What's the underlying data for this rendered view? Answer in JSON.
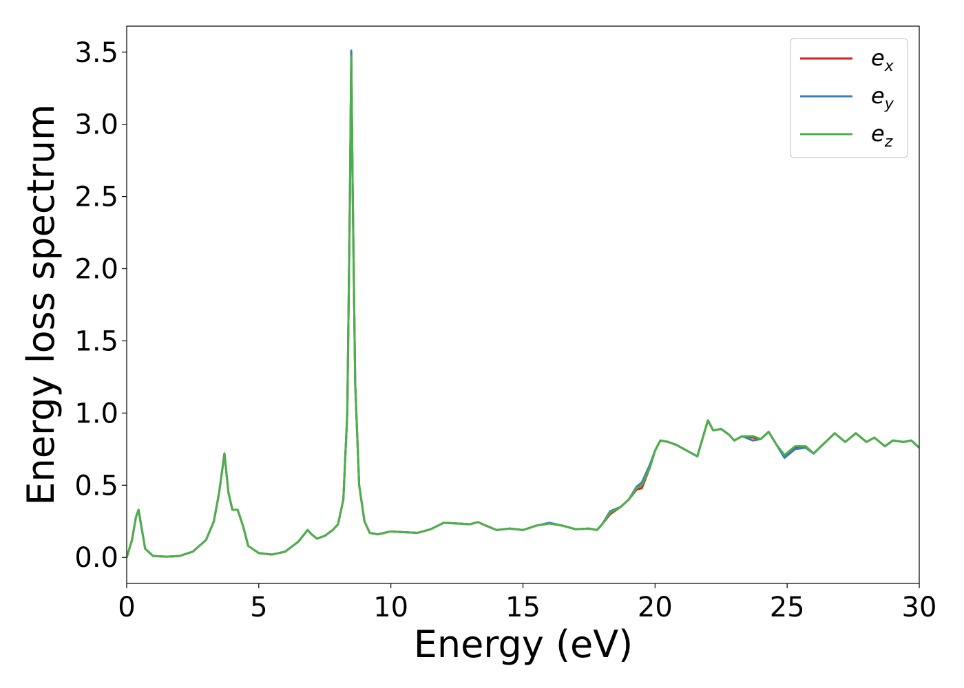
{
  "chart_data": {
    "type": "line",
    "xlabel": "Energy (eV)",
    "ylabel": "Energy loss spectrum",
    "x": [
      0,
      0.2,
      0.35,
      0.45,
      0.55,
      0.7,
      1.0,
      1.5,
      2.0,
      2.5,
      3.0,
      3.3,
      3.5,
      3.7,
      3.85,
      4.0,
      4.2,
      4.4,
      4.6,
      5.0,
      5.5,
      6.0,
      6.5,
      6.85,
      7.0,
      7.2,
      7.5,
      7.8,
      8.0,
      8.2,
      8.35,
      8.45,
      8.5,
      8.55,
      8.65,
      8.8,
      9.0,
      9.2,
      9.5,
      10.0,
      10.5,
      11.0,
      11.5,
      12.0,
      12.5,
      13.0,
      13.3,
      13.6,
      14.0,
      14.5,
      15.0,
      15.5,
      16.0,
      16.5,
      17.0,
      17.5,
      17.8,
      18.0,
      18.3,
      18.7,
      19.0,
      19.3,
      19.5,
      19.8,
      20.0,
      20.2,
      20.5,
      20.8,
      21.2,
      21.6,
      22.0,
      22.2,
      22.5,
      22.8,
      23.0,
      23.3,
      23.7,
      24.0,
      24.3,
      24.6,
      24.9,
      25.3,
      25.7,
      26.0,
      26.4,
      26.8,
      27.2,
      27.6,
      28.0,
      28.3,
      28.7,
      29.0,
      29.4,
      29.7,
      30.0
    ],
    "series": [
      {
        "name": "ex",
        "color": "#e41a1c",
        "values": [
          0,
          0.12,
          0.28,
          0.33,
          0.22,
          0.06,
          0.01,
          0.005,
          0.01,
          0.04,
          0.12,
          0.25,
          0.45,
          0.72,
          0.45,
          0.33,
          0.33,
          0.22,
          0.08,
          0.03,
          0.02,
          0.04,
          0.11,
          0.19,
          0.16,
          0.13,
          0.15,
          0.19,
          0.23,
          0.4,
          1.0,
          2.5,
          3.5,
          2.6,
          1.2,
          0.5,
          0.25,
          0.17,
          0.16,
          0.18,
          0.175,
          0.17,
          0.195,
          0.24,
          0.235,
          0.23,
          0.245,
          0.22,
          0.19,
          0.2,
          0.19,
          0.22,
          0.235,
          0.22,
          0.195,
          0.2,
          0.19,
          0.23,
          0.3,
          0.35,
          0.4,
          0.47,
          0.48,
          0.62,
          0.74,
          0.81,
          0.8,
          0.78,
          0.74,
          0.7,
          0.95,
          0.88,
          0.89,
          0.85,
          0.81,
          0.84,
          0.83,
          0.82,
          0.87,
          0.78,
          0.7,
          0.76,
          0.77,
          0.72,
          0.79,
          0.86,
          0.8,
          0.86,
          0.8,
          0.83,
          0.77,
          0.81,
          0.8,
          0.81,
          0.76
        ]
      },
      {
        "name": "ey",
        "color": "#377eb8",
        "values": [
          0,
          0.12,
          0.28,
          0.33,
          0.22,
          0.06,
          0.01,
          0.005,
          0.01,
          0.04,
          0.12,
          0.25,
          0.45,
          0.72,
          0.45,
          0.33,
          0.33,
          0.22,
          0.08,
          0.03,
          0.02,
          0.04,
          0.11,
          0.19,
          0.16,
          0.13,
          0.15,
          0.19,
          0.23,
          0.4,
          1.0,
          2.5,
          3.51,
          2.6,
          1.2,
          0.5,
          0.25,
          0.17,
          0.16,
          0.18,
          0.175,
          0.17,
          0.195,
          0.24,
          0.235,
          0.23,
          0.245,
          0.22,
          0.19,
          0.2,
          0.19,
          0.22,
          0.24,
          0.22,
          0.195,
          0.2,
          0.19,
          0.23,
          0.32,
          0.35,
          0.4,
          0.49,
          0.52,
          0.64,
          0.74,
          0.81,
          0.8,
          0.78,
          0.74,
          0.7,
          0.95,
          0.88,
          0.89,
          0.85,
          0.81,
          0.84,
          0.81,
          0.82,
          0.87,
          0.78,
          0.69,
          0.75,
          0.76,
          0.72,
          0.79,
          0.86,
          0.8,
          0.86,
          0.8,
          0.83,
          0.77,
          0.81,
          0.8,
          0.81,
          0.76
        ]
      },
      {
        "name": "ez",
        "color": "#4daf4a",
        "values": [
          0,
          0.12,
          0.28,
          0.33,
          0.22,
          0.06,
          0.01,
          0.005,
          0.01,
          0.04,
          0.12,
          0.25,
          0.45,
          0.72,
          0.45,
          0.33,
          0.33,
          0.22,
          0.08,
          0.03,
          0.02,
          0.04,
          0.11,
          0.19,
          0.16,
          0.13,
          0.15,
          0.19,
          0.23,
          0.4,
          1.0,
          2.5,
          3.47,
          2.6,
          1.2,
          0.5,
          0.25,
          0.17,
          0.16,
          0.18,
          0.175,
          0.17,
          0.195,
          0.24,
          0.235,
          0.23,
          0.245,
          0.22,
          0.19,
          0.2,
          0.19,
          0.22,
          0.235,
          0.22,
          0.195,
          0.2,
          0.19,
          0.23,
          0.31,
          0.35,
          0.4,
          0.48,
          0.5,
          0.62,
          0.74,
          0.81,
          0.8,
          0.78,
          0.74,
          0.7,
          0.95,
          0.88,
          0.89,
          0.85,
          0.81,
          0.84,
          0.84,
          0.82,
          0.87,
          0.78,
          0.71,
          0.77,
          0.77,
          0.72,
          0.79,
          0.86,
          0.8,
          0.86,
          0.8,
          0.83,
          0.77,
          0.81,
          0.8,
          0.81,
          0.76
        ]
      }
    ],
    "xlim": [
      0,
      30
    ],
    "ylim": [
      -0.18,
      3.68
    ],
    "xticks": [
      0,
      5,
      10,
      15,
      20,
      25,
      30
    ],
    "yticks": [
      {
        "value": 0,
        "label": "0.0"
      },
      0.5,
      {
        "value": 1,
        "label": "1.0"
      },
      1.5,
      {
        "value": 2,
        "label": "2.0"
      },
      2.5,
      {
        "value": 3,
        "label": "3.0"
      },
      3.5
    ],
    "legend": "upper right"
  }
}
